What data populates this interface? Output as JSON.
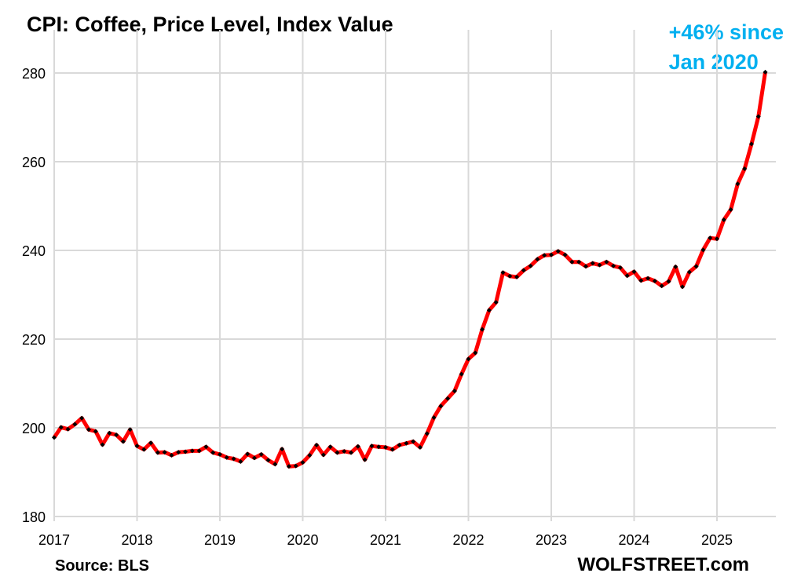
{
  "chart_data": {
    "type": "line",
    "title": "CPI: Coffee, Price Level, Index Value",
    "annotation": [
      "+46% since",
      "Jan 2020"
    ],
    "source": "Source: BLS",
    "brand": "WOLFSTREET.com",
    "xlabel": "",
    "ylabel": "",
    "ylim": [
      180,
      280
    ],
    "yticks": [
      "180",
      "200",
      "220",
      "240",
      "260",
      "280"
    ],
    "xticks": [
      "2017",
      "2018",
      "2019",
      "2020",
      "2021",
      "2022",
      "2023",
      "2024",
      "2025"
    ],
    "grid": true,
    "start": "2017-01",
    "frequency": "monthly",
    "colors": {
      "line": "#ff0000",
      "marker": "#000000",
      "annotation": "#00b0f0",
      "grid": "#d9d9d9"
    },
    "series": [
      {
        "name": "CPI Coffee",
        "values": [
          197.8,
          200.1,
          199.7,
          200.8,
          202.2,
          199.6,
          199.2,
          196.2,
          198.8,
          198.4,
          196.9,
          199.6,
          195.9,
          195.1,
          196.6,
          194.4,
          194.5,
          193.8,
          194.5,
          194.6,
          194.8,
          194.8,
          195.7,
          194.4,
          194.0,
          193.3,
          193.0,
          192.4,
          194.1,
          193.2,
          194.0,
          192.7,
          191.8,
          195.2,
          191.3,
          191.4,
          192.2,
          193.8,
          196.1,
          193.9,
          195.7,
          194.4,
          194.7,
          194.4,
          195.8,
          192.8,
          195.9,
          195.7,
          195.6,
          195.1,
          196.1,
          196.5,
          196.9,
          195.6,
          198.7,
          202.3,
          204.9,
          206.6,
          208.3,
          212.1,
          215.5,
          216.9,
          222.2,
          226.5,
          228.3,
          235.0,
          234.2,
          234.0,
          235.5,
          236.5,
          238.0,
          238.9,
          239.0,
          239.8,
          239.0,
          237.4,
          237.4,
          236.4,
          237.1,
          236.7,
          237.4,
          236.5,
          236.1,
          234.3,
          235.2,
          233.2,
          233.7,
          233.1,
          232.0,
          233.0,
          236.3,
          231.8,
          235.1,
          236.4,
          240.1,
          242.8,
          242.6,
          246.9,
          249.2,
          255.0,
          258.4,
          264.0,
          270.2,
          280.2
        ]
      }
    ]
  }
}
